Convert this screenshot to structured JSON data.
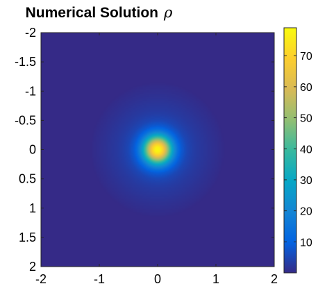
{
  "chart_data": {
    "type": "heatmap",
    "title": "Numerical Solution",
    "title_symbol": "ρ",
    "xlabel": "",
    "ylabel": "",
    "xlim": [
      -2,
      2
    ],
    "ylim": [
      -2,
      2
    ],
    "y_direction": "reversed",
    "x_ticks": [
      -2,
      -1,
      0,
      1,
      2
    ],
    "x_tick_labels": [
      "-2",
      "-1",
      "0",
      "1",
      "2"
    ],
    "y_ticks": [
      -2,
      -1.5,
      -1,
      -0.5,
      0,
      0.5,
      1,
      1.5,
      2
    ],
    "y_tick_labels": [
      "-2",
      "-1.5",
      "-1",
      "-0.5",
      "0",
      "0.5",
      "1",
      "1.5",
      "2"
    ],
    "colormap": "parula",
    "colormap_stops": [
      "#352a87",
      "#0363e1",
      "#1485d4",
      "#06a7c6",
      "#38b99e",
      "#92bf73",
      "#d9ba56",
      "#fcce2e",
      "#f9fb0e"
    ],
    "clim": [
      0,
      79
    ],
    "colorbar": {
      "position": "right",
      "ticks": [
        10,
        20,
        30,
        40,
        50,
        60,
        70
      ],
      "tick_labels": [
        "10",
        "20",
        "30",
        "40",
        "50",
        "60",
        "70"
      ]
    },
    "field": {
      "description_of_shape": "radially symmetric peak centered at origin",
      "center": [
        0,
        0
      ],
      "peak_value": 79,
      "radial_profile": [
        {
          "r": 0.0,
          "value": 79
        },
        {
          "r": 0.05,
          "value": 76
        },
        {
          "r": 0.1,
          "value": 68
        },
        {
          "r": 0.15,
          "value": 56
        },
        {
          "r": 0.2,
          "value": 43
        },
        {
          "r": 0.25,
          "value": 30
        },
        {
          "r": 0.3,
          "value": 20
        },
        {
          "r": 0.35,
          "value": 13
        },
        {
          "r": 0.4,
          "value": 8.5
        },
        {
          "r": 0.5,
          "value": 5
        },
        {
          "r": 0.6,
          "value": 3.5
        },
        {
          "r": 0.7,
          "value": 2.6
        },
        {
          "r": 0.8,
          "value": 2.0
        },
        {
          "r": 0.9,
          "value": 1.4
        },
        {
          "r": 1.0,
          "value": 0.9
        },
        {
          "r": 1.1,
          "value": 0.4
        },
        {
          "r": 1.15,
          "value": 0.0
        },
        {
          "r": 3.0,
          "value": 0.0
        }
      ]
    }
  }
}
